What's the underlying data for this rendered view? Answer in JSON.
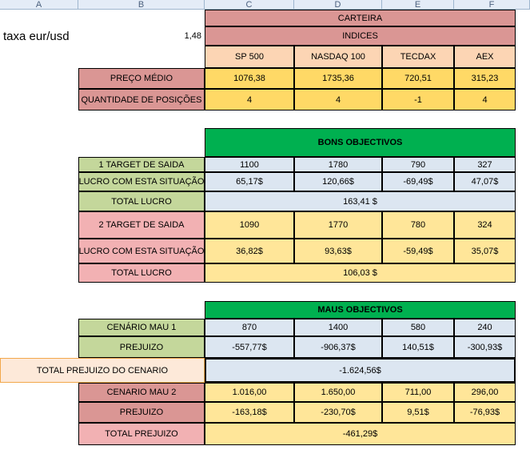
{
  "columns": [
    "A",
    "B",
    "C",
    "D",
    "E",
    "F"
  ],
  "taxa": {
    "label": "taxa eur/usd",
    "value": "1,48"
  },
  "carteira": "CARTEIRA",
  "indices": "INDICES",
  "index_names": [
    "SP 500",
    "NASDAQ 100",
    "TECDAX",
    "AEX"
  ],
  "preco_medio": {
    "label": "PREÇO MÉDIO",
    "values": [
      "1076,38",
      "1735,36",
      "720,51",
      "315,23"
    ]
  },
  "quantidade": {
    "label": "QUANTIDADE DE POSIÇÕES",
    "values": [
      "4",
      "4",
      "-1",
      "4"
    ]
  },
  "bons_objectivos": "BONS OBJECTIVOS",
  "target1": {
    "label": "1 TARGET DE SAIDA",
    "values": [
      "1100",
      "1780",
      "790",
      "327"
    ]
  },
  "lucro1": {
    "label": "LUCRO COM ESTA SITUAÇÃO",
    "values": [
      "65,17$",
      "120,66$",
      "-69,49$",
      "47,07$"
    ]
  },
  "total_lucro1": {
    "label": "TOTAL LUCRO",
    "value": "163,41 $"
  },
  "target2": {
    "label": "2 TARGET DE SAIDA",
    "values": [
      "1090",
      "1770",
      "780",
      "324"
    ]
  },
  "lucro2": {
    "label": "LUCRO COM ESTA SITUAÇÃO",
    "values": [
      "36,82$",
      "93,63$",
      "-59,49$",
      "35,07$"
    ]
  },
  "total_lucro2": {
    "label": "TOTAL LUCRO",
    "value": "106,03 $"
  },
  "maus_objectivos": "MAUS OBJECTIVOS",
  "cenario1": {
    "label": "CENÁRIO MAU 1",
    "values": [
      "870",
      "1400",
      "580",
      "240"
    ]
  },
  "prejuizo1": {
    "label": "PREJUIZO",
    "values": [
      "-557,77$",
      "-906,37$",
      "140,51$",
      "-300,93$"
    ]
  },
  "total_prejuizo_cenario": {
    "label": "TOTAL  PREJUIZO DO CENARIO",
    "value": "-1.624,56$"
  },
  "cenario2": {
    "label": "CENARIO MAU 2",
    "values": [
      "1.016,00",
      "1.650,00",
      "711,00",
      "296,00"
    ]
  },
  "prejuizo2": {
    "label": "PREJUIZO",
    "values": [
      "-163,18$",
      "-230,70$",
      "9,51$",
      "-76,93$"
    ]
  },
  "total_prejuizo": {
    "label": "TOTAL  PREJUIZO",
    "value": "-461,29$"
  },
  "colors": {
    "brown": "#da9694",
    "orange": "#fcd5b4",
    "gold": "#ffd966",
    "green": "#00b050",
    "light_green": "#c4d79b",
    "blue": "#dce6f1",
    "pink": "#f2b1b3"
  }
}
